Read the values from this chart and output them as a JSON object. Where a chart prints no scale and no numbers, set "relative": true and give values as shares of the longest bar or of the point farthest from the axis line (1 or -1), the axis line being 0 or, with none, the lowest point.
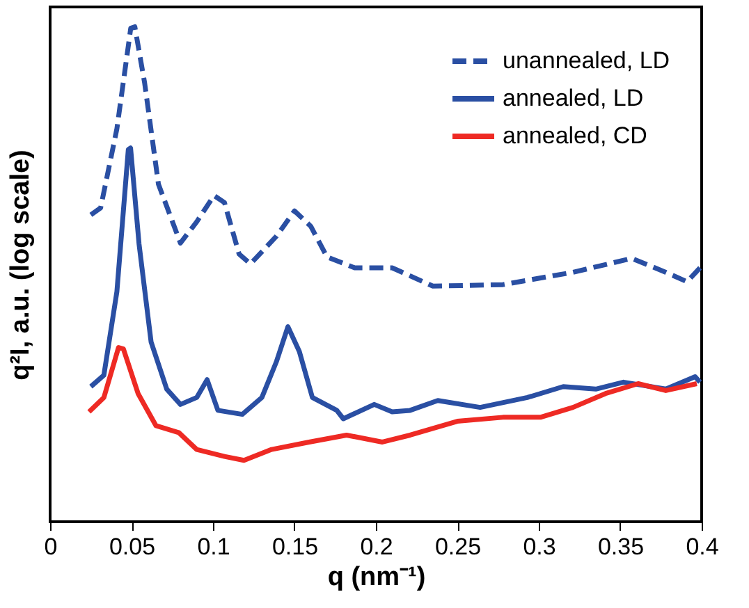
{
  "chart_data": {
    "type": "line",
    "relative": true,
    "xlabel": "q (nm⁻¹)",
    "ylabel": "q²I, a.u. (log scale)",
    "xlim": [
      0,
      0.4
    ],
    "xticks": [
      0,
      0.05,
      0.1,
      0.15,
      0.2,
      0.25,
      0.3,
      0.35,
      0.4
    ],
    "tick_labels": "x",
    "grid": false,
    "legend": "top right",
    "marker": "none",
    "series": [
      {
        "name": "unannealed, LD",
        "color": "#2a4fa3",
        "line_style": "dashed",
        "x": [
          0.025,
          0.031,
          0.041,
          0.0495,
          0.052,
          0.058,
          0.0665,
          0.08,
          0.09,
          0.1006,
          0.107,
          0.116,
          0.123,
          0.139,
          0.15,
          0.16,
          0.17,
          0.187,
          0.21,
          0.235,
          0.278,
          0.321,
          0.357,
          0.378,
          0.391,
          0.399
        ],
        "values": [
          0.62,
          0.634,
          0.794,
          0.997,
          1.0,
          0.887,
          0.682,
          0.563,
          0.606,
          0.659,
          0.645,
          0.541,
          0.521,
          0.577,
          0.628,
          0.597,
          0.535,
          0.513,
          0.513,
          0.476,
          0.479,
          0.504,
          0.532,
          0.504,
          0.485,
          0.513
        ]
      },
      {
        "name": "annealed, LD",
        "color": "#2a4fa3",
        "line_style": "solid",
        "x": [
          0.025,
          0.033,
          0.041,
          0.048,
          0.0494,
          0.0546,
          0.062,
          0.0716,
          0.08,
          0.09,
          0.0964,
          0.103,
          0.118,
          0.13,
          0.139,
          0.146,
          0.153,
          0.161,
          0.176,
          0.18,
          0.199,
          0.21,
          0.221,
          0.238,
          0.264,
          0.293,
          0.315,
          0.335,
          0.352,
          0.378,
          0.396,
          0.399
        ],
        "values": [
          0.273,
          0.296,
          0.465,
          0.752,
          0.755,
          0.561,
          0.363,
          0.268,
          0.237,
          0.251,
          0.287,
          0.225,
          0.217,
          0.251,
          0.324,
          0.394,
          0.344,
          0.251,
          0.225,
          0.208,
          0.237,
          0.222,
          0.225,
          0.245,
          0.231,
          0.251,
          0.273,
          0.268,
          0.282,
          0.268,
          0.293,
          0.282
        ]
      },
      {
        "name": "annealed, CD",
        "color": "#ee2a24",
        "line_style": "solid",
        "x": [
          0.0239,
          0.033,
          0.042,
          0.045,
          0.054,
          0.065,
          0.079,
          0.09,
          0.107,
          0.119,
          0.136,
          0.159,
          0.182,
          0.204,
          0.221,
          0.25,
          0.278,
          0.301,
          0.321,
          0.341,
          0.361,
          0.378,
          0.397
        ],
        "values": [
          0.222,
          0.251,
          0.352,
          0.349,
          0.259,
          0.194,
          0.18,
          0.146,
          0.132,
          0.124,
          0.146,
          0.161,
          0.175,
          0.161,
          0.175,
          0.203,
          0.211,
          0.211,
          0.231,
          0.259,
          0.279,
          0.265,
          0.279
        ]
      }
    ]
  }
}
